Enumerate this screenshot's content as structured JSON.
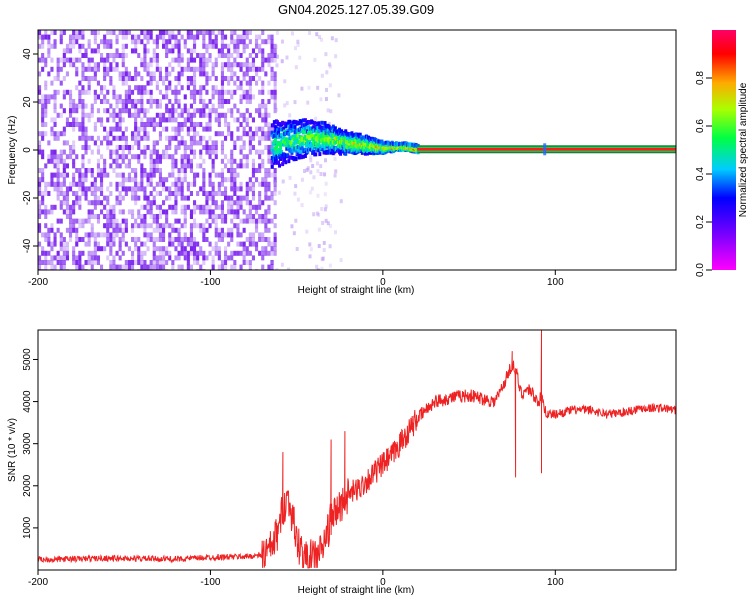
{
  "title": "GN04.2025.127.05.39.G09",
  "colors": {
    "snr_line": "#ee2222",
    "spectrogram_noise": "#7a22ee",
    "ridge_line": "#ff1a1a",
    "frame": "#000000"
  },
  "chart_data": [
    {
      "type": "heatmap",
      "xlabel": "Height of straight line (km)",
      "ylabel": "Frequency (Hz)",
      "xlim": [
        -200,
        170
      ],
      "ylim": [
        -50,
        50
      ],
      "xticks": [
        -200,
        -100,
        0,
        100
      ],
      "xtick_labels": [
        "-200",
        "-100",
        "0",
        "100"
      ],
      "yticks": [
        -40,
        -20,
        0,
        20,
        40
      ],
      "ytick_labels": [
        "-40",
        "-20",
        "0",
        "20",
        "40"
      ],
      "colorbar": {
        "label": "Normalized spectral amplitude",
        "range": [
          0,
          1
        ],
        "ticks": [
          0.0,
          0.2,
          0.4,
          0.6,
          0.8
        ],
        "tick_labels": [
          "0.0",
          "0.2",
          "0.4",
          "0.6",
          "0.8"
        ]
      },
      "regions": [
        {
          "x_range": [
            -200,
            -65
          ],
          "freq_range": [
            -50,
            50
          ],
          "level": "0.2-0.3",
          "pattern": "broadband noise"
        },
        {
          "x_range": [
            -65,
            -40
          ],
          "freq_range": [
            -8,
            10
          ],
          "level": "0.3-0.5",
          "pattern": "transition"
        },
        {
          "x_range": [
            -45,
            -30
          ],
          "freq_range": [
            -50,
            50
          ],
          "level": "0.05-0.15",
          "pattern": "faint vertical band"
        },
        {
          "x_range": [
            -65,
            20
          ],
          "freq_range": [
            -3,
            8
          ],
          "level": "0.4-0.9",
          "pattern": "converging ridge"
        },
        {
          "x_range": [
            20,
            170
          ],
          "freq_range": [
            -1,
            1
          ],
          "level": "0.9-1.0",
          "pattern": "steady carrier"
        }
      ],
      "ridge": {
        "x": [
          -65,
          -55,
          -45,
          -35,
          -28,
          -20,
          -10,
          0,
          10,
          20,
          60,
          100,
          170
        ],
        "frequency": [
          2,
          4,
          5,
          5,
          4,
          3,
          2,
          1,
          1.5,
          0.5,
          0.3,
          0.3,
          0.2
        ]
      },
      "grid": false
    },
    {
      "type": "line",
      "xlabel": "Height of straight line (km)",
      "ylabel": "SNR (10 * v/v)",
      "xlim": [
        -200,
        170
      ],
      "ylim": [
        0,
        5700
      ],
      "xticks": [
        -200,
        -100,
        0,
        100
      ],
      "xtick_labels": [
        "-200",
        "-100",
        "0",
        "100"
      ],
      "yticks": [
        1000,
        2000,
        3000,
        4000,
        5000
      ],
      "ytick_labels": [
        "1000",
        "2000",
        "3000",
        "4000",
        "5000"
      ],
      "series": [
        {
          "x": [
            -200,
            -180,
            -160,
            -140,
            -120,
            -100,
            -80,
            -70,
            -65,
            -60,
            -58,
            -55,
            -52,
            -50,
            -45,
            -40,
            -35,
            -30,
            -25,
            -20,
            -15,
            -10,
            -5,
            0,
            5,
            10,
            15,
            20,
            25,
            30,
            40,
            50,
            60,
            65,
            70,
            75,
            78,
            80,
            85,
            90,
            92,
            95,
            100,
            110,
            120,
            130,
            140,
            150,
            160,
            170
          ],
          "y": [
            250,
            260,
            280,
            270,
            260,
            300,
            320,
            350,
            500,
            1000,
            1500,
            1700,
            1200,
            700,
            250,
            300,
            500,
            1200,
            1500,
            1800,
            1900,
            2100,
            2300,
            2500,
            2700,
            3000,
            3300,
            3600,
            3800,
            4000,
            4100,
            4150,
            4050,
            4000,
            4400,
            4900,
            4600,
            4200,
            4300,
            4000,
            4100,
            3700,
            3700,
            3800,
            3800,
            3700,
            3750,
            3850,
            3850,
            3800
          ]
        }
      ],
      "spikes": [
        {
          "x": -58,
          "y": 2800
        },
        {
          "x": -30,
          "y": 3100
        },
        {
          "x": -22,
          "y": 3300
        },
        {
          "x": 75,
          "y": 5200
        },
        {
          "x": 77,
          "y": 2200
        },
        {
          "x": 92,
          "y": 5700
        },
        {
          "x": 92,
          "y": 2300
        }
      ],
      "grid": false
    }
  ]
}
